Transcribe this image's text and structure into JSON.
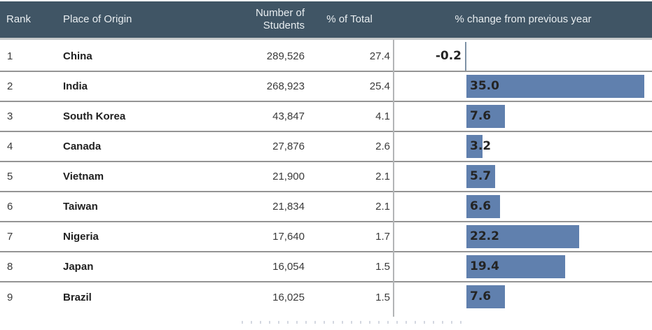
{
  "header": {
    "rank": "Rank",
    "place": "Place of Origin",
    "students": "Number of\nStudents",
    "pct_total": "% of Total",
    "pct_change": "% change from previous year"
  },
  "colors": {
    "header_bg": "#405565",
    "header_text": "#e8edf0",
    "bar": "#6080ae",
    "row_border": "#949494",
    "zero_axis": "#7e92a6"
  },
  "rows": [
    {
      "rank": "1",
      "place": "China",
      "students": "289,526",
      "pct_total": "27.4",
      "pct_change": -0.2,
      "pct_change_label": "-0.2"
    },
    {
      "rank": "2",
      "place": "India",
      "students": "268,923",
      "pct_total": "25.4",
      "pct_change": 35.0,
      "pct_change_label": "35.0"
    },
    {
      "rank": "3",
      "place": "South Korea",
      "students": "43,847",
      "pct_total": "4.1",
      "pct_change": 7.6,
      "pct_change_label": "7.6"
    },
    {
      "rank": "4",
      "place": "Canada",
      "students": "27,876",
      "pct_total": "2.6",
      "pct_change": 3.2,
      "pct_change_label": "3.2"
    },
    {
      "rank": "5",
      "place": "Vietnam",
      "students": "21,900",
      "pct_total": "2.1",
      "pct_change": 5.7,
      "pct_change_label": "5.7"
    },
    {
      "rank": "6",
      "place": "Taiwan",
      "students": "21,834",
      "pct_total": "2.1",
      "pct_change": 6.6,
      "pct_change_label": "6.6"
    },
    {
      "rank": "7",
      "place": "Nigeria",
      "students": "17,640",
      "pct_total": "1.7",
      "pct_change": 22.2,
      "pct_change_label": "22.2"
    },
    {
      "rank": "8",
      "place": "Japan",
      "students": "16,054",
      "pct_total": "1.5",
      "pct_change": 19.4,
      "pct_change_label": "19.4"
    },
    {
      "rank": "9",
      "place": "Brazil",
      "students": "16,025",
      "pct_total": "1.5",
      "pct_change": 7.6,
      "pct_change_label": "7.6"
    }
  ],
  "chart_data": {
    "type": "bar",
    "orientation": "horizontal",
    "title": "% change from previous year",
    "categories": [
      "China",
      "India",
      "South Korea",
      "Canada",
      "Vietnam",
      "Taiwan",
      "Nigeria",
      "Japan",
      "Brazil"
    ],
    "values": [
      -0.2,
      35.0,
      7.6,
      3.2,
      5.7,
      6.6,
      22.2,
      19.4,
      7.6
    ],
    "baseline": 0,
    "xlim": [
      -0.5,
      36.5
    ],
    "grid": false,
    "legend": false,
    "bar_color": "#6080ae",
    "value_labels": [
      "-0.2",
      "35.0",
      "7.6",
      "3.2",
      "5.7",
      "6.6",
      "22.2",
      "19.4",
      "7.6"
    ],
    "companion_table_columns": [
      "Rank",
      "Place of Origin",
      "Number of Students",
      "% of Total"
    ]
  }
}
